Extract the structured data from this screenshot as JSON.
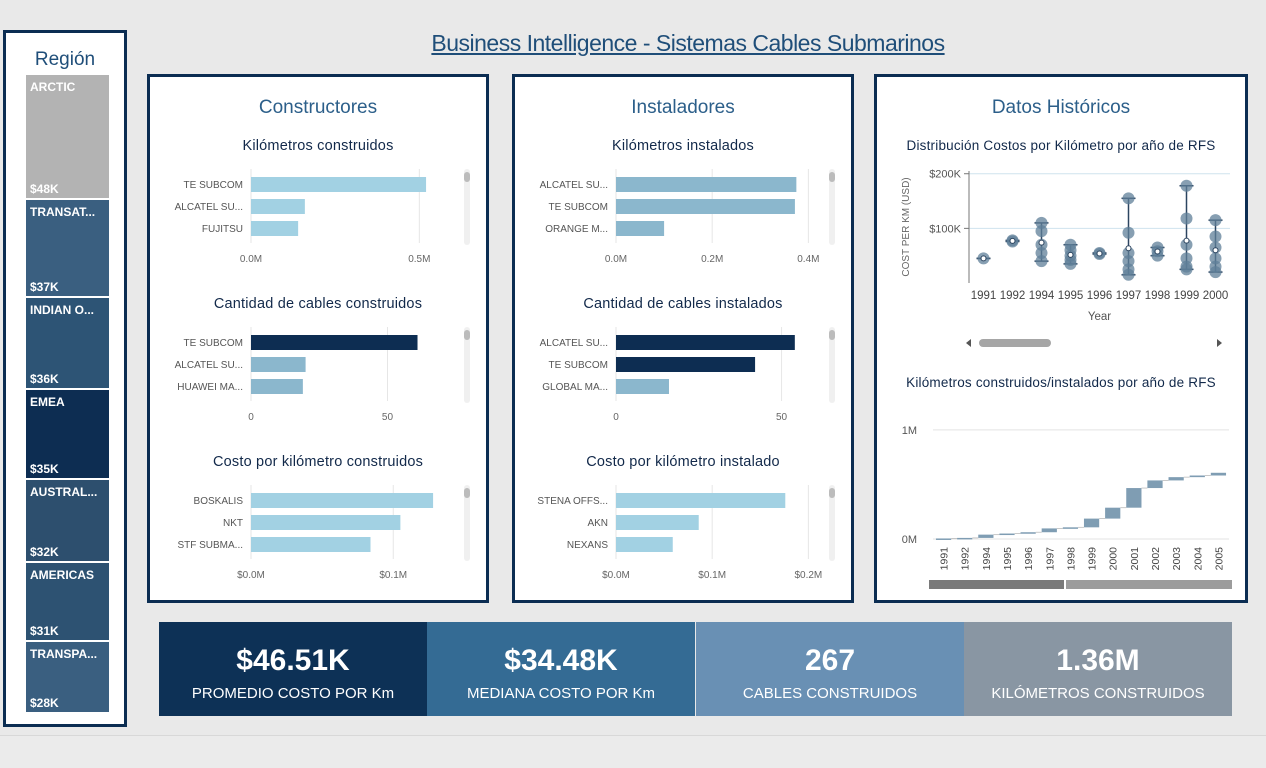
{
  "title": "Business Intelligence - Sistemas Cables Submarinos",
  "region": {
    "title": "Región",
    "tiles": [
      {
        "name": "ARCTIC",
        "value": "$48K",
        "color": "#b3b3b3"
      },
      {
        "name": "TRANSAT...",
        "value": "$37K",
        "color": "#3a5f80"
      },
      {
        "name": "INDIAN O...",
        "value": "$36K",
        "color": "#2d5475"
      },
      {
        "name": "EMEA",
        "value": "$35K",
        "color": "#0d2d52"
      },
      {
        "name": "AUSTRAL...",
        "value": "$32K",
        "color": "#2d4f6e"
      },
      {
        "name": "AMERICAS",
        "value": "$31K",
        "color": "#2d5272"
      },
      {
        "name": "TRANSPA...",
        "value": "$28K",
        "color": "#3a5f80"
      }
    ]
  },
  "panels": {
    "constructores": "Constructores",
    "instaladores": "Instaladores",
    "historicos": "Datos Históricos"
  },
  "chart_data": [
    {
      "id": "km_construidos",
      "type": "bar",
      "title": "Kilómetros construidos",
      "categories": [
        "TE SUBCOM",
        "ALCATEL SU...",
        "FUJITSU"
      ],
      "values": [
        520000,
        160000,
        140000
      ],
      "xlim": [
        0,
        600000
      ],
      "ticks": [
        0,
        500000
      ],
      "tick_labels": [
        "0.0M",
        "0.5M"
      ],
      "color": "#a2d1e3",
      "colors": [
        "#a2d1e3",
        "#a2d1e3",
        "#a2d1e3"
      ]
    },
    {
      "id": "cant_construidos",
      "type": "bar",
      "title": "Cantidad de cables construidos",
      "categories": [
        "TE SUBCOM",
        "ALCATEL SU...",
        "HUAWEI MA..."
      ],
      "values": [
        61,
        20,
        19
      ],
      "xlim": [
        0,
        74
      ],
      "ticks": [
        0,
        50
      ],
      "tick_labels": [
        "0",
        "50"
      ],
      "colors": [
        "#0d2d52",
        "#8bb7cd",
        "#8bb7cd"
      ]
    },
    {
      "id": "costo_construidos",
      "type": "bar",
      "title": "Costo por kilómetro construidos",
      "categories": [
        "BOSKALIS",
        "NKT",
        "STF SUBMA..."
      ],
      "values": [
        128000,
        105000,
        84000
      ],
      "xlim": [
        0,
        142000
      ],
      "ticks": [
        0,
        100000
      ],
      "tick_labels": [
        "$0.0M",
        "$0.1M"
      ],
      "colors": [
        "#a2d1e3",
        "#a2d1e3",
        "#a2d1e3"
      ]
    },
    {
      "id": "km_instalados",
      "type": "bar",
      "title": "Kilómetros instalados",
      "categories": [
        "ALCATEL SU...",
        "TE SUBCOM",
        "ORANGE M..."
      ],
      "values": [
        375000,
        372000,
        100000
      ],
      "xlim": [
        0,
        420000
      ],
      "ticks": [
        0,
        200000,
        400000
      ],
      "tick_labels": [
        "0.0M",
        "0.2M",
        "0.4M"
      ],
      "colors": [
        "#8bb7cd",
        "#8bb7cd",
        "#8bb7cd"
      ]
    },
    {
      "id": "cant_instalados",
      "type": "bar",
      "title": "Cantidad de cables instalados",
      "categories": [
        "ALCATEL SU...",
        "TE SUBCOM",
        "GLOBAL MA..."
      ],
      "values": [
        54,
        42,
        16
      ],
      "xlim": [
        0,
        61
      ],
      "ticks": [
        0,
        50
      ],
      "tick_labels": [
        "0",
        "50"
      ],
      "colors": [
        "#0d2d52",
        "#0d2d52",
        "#8bb7cd"
      ]
    },
    {
      "id": "costo_instalado",
      "type": "bar",
      "title": "Costo por kilómetro instalado",
      "categories": [
        "STENA OFFS...",
        "AKN",
        "NEXANS"
      ],
      "values": [
        176000,
        86000,
        59000
      ],
      "xlim": [
        0,
        210000
      ],
      "ticks": [
        0,
        100000,
        200000
      ],
      "tick_labels": [
        "$0.0M",
        "$0.1M",
        "$0.2M"
      ],
      "colors": [
        "#a2d1e3",
        "#a2d1e3",
        "#a2d1e3"
      ]
    },
    {
      "id": "dist_costos",
      "type": "scatter",
      "title": "Distribución Costos por Kilómetro por año de RFS",
      "xlabel": "Year",
      "ylabel": "COST PER KM (USD)",
      "ylim": [
        0,
        205000
      ],
      "yticks": [
        100000,
        200000
      ],
      "ytick_labels": [
        "$100K",
        "$200K"
      ],
      "categories": [
        "1991",
        "1992",
        "1994",
        "1995",
        "1996",
        "1997",
        "1998",
        "1999",
        "2000"
      ],
      "points": [
        [
          45000
        ],
        [
          78000,
          76000
        ],
        [
          110000,
          95000,
          70000,
          55000,
          40000
        ],
        [
          70000,
          60000,
          50000,
          42000,
          35000
        ],
        [
          55000,
          53000
        ],
        [
          155000,
          92000,
          55000,
          40000,
          25000,
          15000
        ],
        [
          65000,
          58000,
          50000
        ],
        [
          178000,
          118000,
          70000,
          45000,
          30000,
          25000
        ],
        [
          115000,
          85000,
          65000,
          45000,
          30000,
          20000
        ]
      ]
    },
    {
      "id": "km_por_anio",
      "type": "waterfall",
      "title": "Kilómetros construidos/instalados por año de RFS",
      "ylim": [
        0,
        1100000
      ],
      "yticks": [
        0,
        1000000
      ],
      "ytick_labels": [
        "0M",
        "1M"
      ],
      "categories": [
        "1991",
        "1992",
        "1994",
        "1995",
        "1996",
        "1997",
        "1998",
        "1999",
        "2000",
        "2001",
        "2002",
        "2003",
        "2004",
        "2005"
      ],
      "values": [
        5000,
        5000,
        30000,
        10000,
        12000,
        35000,
        10000,
        80000,
        100000,
        180000,
        70000,
        30000,
        15000,
        25000
      ]
    }
  ],
  "kpis": [
    {
      "value": "$46.51K",
      "label": "PROMEDIO COSTO POR Km",
      "color": "#0d3156"
    },
    {
      "value": "$34.48K",
      "label": "MEDIANA COSTO POR Km",
      "color": "#346b94"
    },
    {
      "value": "267",
      "label": "CABLES CONSTRUIDOS",
      "color": "#6990b4"
    },
    {
      "value": "1.36M",
      "label": "KILÓMETROS CONSTRUIDOS",
      "color": "#8996a3"
    }
  ]
}
